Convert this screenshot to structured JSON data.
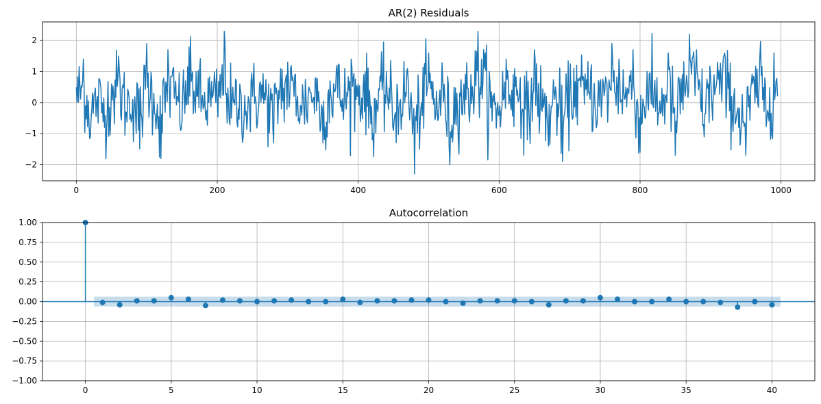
{
  "chart_data": [
    {
      "type": "line",
      "title": "AR(2) Residuals",
      "xlabel": "",
      "ylabel": "",
      "xlim": [
        -48,
        1048
      ],
      "ylim": [
        -2.52,
        2.6
      ],
      "xticks": [
        0,
        200,
        400,
        600,
        800,
        1000
      ],
      "xtick_labels": [
        "0",
        "200",
        "400",
        "600",
        "800",
        "1000"
      ],
      "yticks": [
        2,
        1,
        0,
        -1,
        -2
      ],
      "ytick_labels": [
        "2",
        "1",
        "0",
        "−1",
        "−2"
      ],
      "grid": true,
      "n_points": 996,
      "color": "#1f77b4",
      "series": [
        {
          "x_step": 10,
          "values": [
            0.5,
            1.4,
            -1.1,
            0.2,
            -0.8,
            0.6,
            1.5,
            -0.3,
            0.1,
            -1.5,
            1.9,
            0.3,
            -1.8,
            1.7,
            0.4,
            -0.6,
            1.8,
            1.0,
            -0.2,
            0.3,
            0.1,
            2.3,
            -0.5,
            -0.2,
            -0.4,
            0.2,
            0.6,
            0.3,
            -1.3,
            1.1,
            1.3,
            0.9,
            -0.4,
            0.5,
            0.8,
            -1.3,
            0.7,
            1.2,
            0.0,
            1.4,
            0.6,
            1.0,
            -1.2,
            0.4,
            1.0,
            -0.9,
            0.1,
            1.1,
            -2.3,
            0.0,
            1.6,
            -0.4,
            0.7,
            -2.0,
            0.3,
            0.6,
            0.9,
            2.3,
            1.6,
            -0.6,
            -0.4,
            1.4,
            0.9,
            0.8,
            -1.2,
            1.7,
            -0.2,
            -1.4,
            0.5,
            -1.9,
            0.3,
            1.2,
            0.8,
            1.0,
            0.1,
            0.4,
            1.9,
            1.4,
            0.5,
            1.7,
            -1.6,
            1.0,
            0.4,
            -0.3,
            1.6,
            -1.7,
            0.9,
            2.2,
            1.7,
            -0.7,
            0.9,
            1.3,
            1.6,
            0.2,
            -0.8,
            -1.7,
            0.6,
            1.5,
            -0.5,
            1.6
          ]
        }
      ]
    },
    {
      "type": "stem",
      "title": "Autocorrelation",
      "xlabel": "",
      "ylabel": "",
      "xlim": [
        -2.5,
        42.5
      ],
      "ylim": [
        -1.0,
        1.0
      ],
      "xticks": [
        0,
        5,
        10,
        15,
        20,
        25,
        30,
        35,
        40
      ],
      "xtick_labels": [
        "0",
        "5",
        "10",
        "15",
        "20",
        "25",
        "30",
        "35",
        "40"
      ],
      "yticks": [
        1.0,
        0.75,
        0.5,
        0.25,
        0.0,
        -0.25,
        -0.5,
        -0.75,
        -1.0
      ],
      "ytick_labels": [
        "1.00",
        "0.75",
        "0.50",
        "0.25",
        "0.00",
        "−0.25",
        "−0.50",
        "−0.75",
        "−1.00"
      ],
      "grid": true,
      "confidence_band": [
        -0.062,
        0.062
      ],
      "color": "#1f77b4",
      "band_color": "#1f77b4",
      "lags": [
        0,
        1,
        2,
        3,
        4,
        5,
        6,
        7,
        8,
        9,
        10,
        11,
        12,
        13,
        14,
        15,
        16,
        17,
        18,
        19,
        20,
        21,
        22,
        23,
        24,
        25,
        26,
        27,
        28,
        29,
        30,
        31,
        32,
        33,
        34,
        35,
        36,
        37,
        38,
        39,
        40
      ],
      "values": [
        1.0,
        -0.01,
        -0.04,
        0.01,
        0.01,
        0.05,
        0.03,
        -0.05,
        0.02,
        0.01,
        0.0,
        0.01,
        0.02,
        0.0,
        0.0,
        0.03,
        -0.01,
        0.01,
        0.01,
        0.02,
        0.02,
        0.0,
        -0.02,
        0.01,
        0.01,
        0.01,
        0.0,
        -0.04,
        0.01,
        0.01,
        0.05,
        0.03,
        0.0,
        0.0,
        0.03,
        0.0,
        0.0,
        -0.01,
        -0.07,
        0.0,
        -0.04
      ]
    }
  ]
}
